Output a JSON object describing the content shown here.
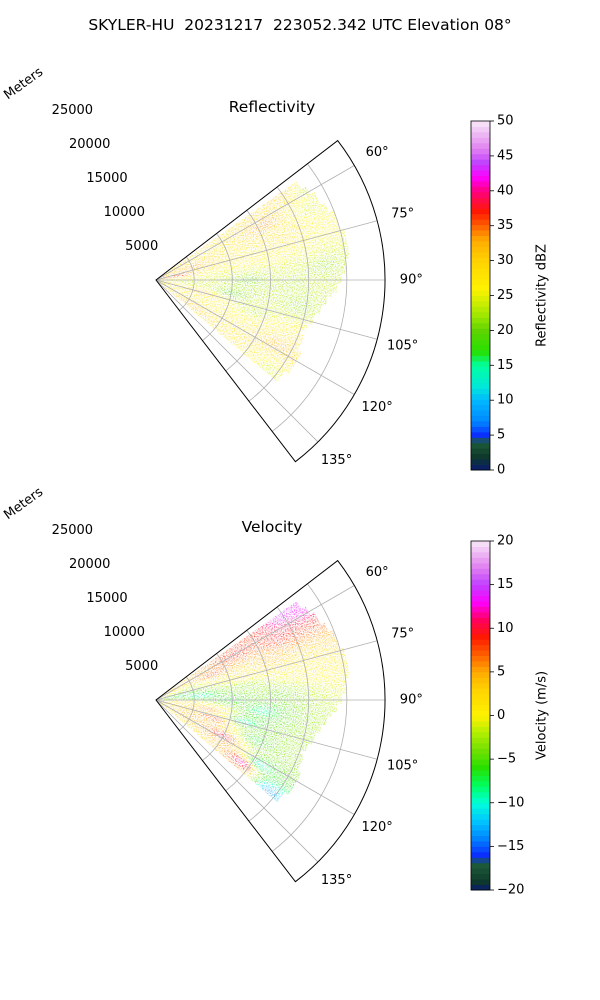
{
  "suptitle": "SKYLER-HU  20231217  223052.342 UTC Elevation 08°",
  "chart_data": [
    {
      "type": "heatmap",
      "projection": "polar sector (azimuth clockwise from north)",
      "title": "Reflectivity",
      "field": "reflectivity",
      "radial_label": "Meters",
      "range_ticks": [
        5000,
        10000,
        15000,
        20000,
        25000
      ],
      "range_tick_labels": [
        "5000",
        "10000",
        "15000",
        "20000",
        "25000"
      ],
      "range_lim": [
        0,
        30000
      ],
      "azimuth_lim_deg": [
        52.5,
        142.5
      ],
      "azimuth_ticks_deg": [
        60,
        75,
        90,
        105,
        120,
        135
      ],
      "azimuth_tick_labels": [
        "60°",
        "75°",
        "90°",
        "105°",
        "120°",
        "135°"
      ],
      "data_azimuth_range_deg": [
        55,
        130
      ],
      "data_max_range_m": [
        [
          55,
          22000
        ],
        [
          70,
          24500
        ],
        [
          80,
          25500
        ],
        [
          90,
          24000
        ],
        [
          100,
          21500
        ],
        [
          110,
          20000
        ],
        [
          120,
          21000
        ],
        [
          130,
          20500
        ]
      ],
      "cells_azimuth_range_value": [
        [
          56,
          20000,
          32
        ],
        [
          58,
          23000,
          22
        ],
        [
          63,
          16000,
          35
        ],
        [
          65,
          9000,
          28
        ],
        [
          65,
          22000,
          24
        ],
        [
          70,
          5000,
          34
        ],
        [
          72,
          17000,
          30
        ],
        [
          75,
          13000,
          27
        ],
        [
          80,
          3000,
          38
        ],
        [
          80,
          20000,
          25
        ],
        [
          85,
          8000,
          24
        ],
        [
          85,
          22000,
          21
        ],
        [
          90,
          12000,
          19
        ],
        [
          92,
          18000,
          22
        ],
        [
          95,
          5000,
          23
        ],
        [
          100,
          10000,
          18
        ],
        [
          100,
          19000,
          21
        ],
        [
          105,
          6000,
          33
        ],
        [
          108,
          14000,
          22
        ],
        [
          112,
          17000,
          28
        ],
        [
          115,
          9000,
          27
        ],
        [
          118,
          18000,
          34
        ],
        [
          122,
          15000,
          30
        ],
        [
          125,
          6000,
          32
        ],
        [
          128,
          19000,
          24
        ]
      ],
      "grid": true,
      "colorbar": {
        "label": "Reflectivity dBZ",
        "range": [
          0,
          50
        ],
        "ticks": [
          0,
          5,
          10,
          15,
          20,
          25,
          30,
          35,
          40,
          45,
          50
        ],
        "tick_labels": [
          "0",
          "5",
          "10",
          "15",
          "20",
          "25",
          "30",
          "35",
          "40",
          "45",
          "50"
        ],
        "stops": [
          [
            0,
            "#0a1a6e"
          ],
          [
            2,
            "#0e3a2a"
          ],
          [
            4,
            "#1e5c3a"
          ],
          [
            5,
            "#0a2cff"
          ],
          [
            7,
            "#0088ff"
          ],
          [
            10,
            "#00b8ff"
          ],
          [
            12,
            "#00e8d8"
          ],
          [
            15,
            "#00ffa0"
          ],
          [
            17,
            "#26e000"
          ],
          [
            20,
            "#5fd400"
          ],
          [
            22,
            "#9ae600"
          ],
          [
            24,
            "#ccee00"
          ],
          [
            26,
            "#fff200"
          ],
          [
            30,
            "#ffd200"
          ],
          [
            33,
            "#ffaa00"
          ],
          [
            35,
            "#ff6000"
          ],
          [
            37,
            "#ff1a00"
          ],
          [
            40,
            "#ff0080"
          ],
          [
            42,
            "#ff00ff"
          ],
          [
            44,
            "#c040ff"
          ],
          [
            46,
            "#e080f0"
          ],
          [
            50,
            "#f8e8f8"
          ]
        ]
      }
    },
    {
      "type": "heatmap",
      "projection": "polar sector (azimuth clockwise from north)",
      "title": "Velocity",
      "field": "radial_velocity",
      "radial_label": "Meters",
      "range_ticks": [
        5000,
        10000,
        15000,
        20000,
        25000
      ],
      "range_tick_labels": [
        "5000",
        "10000",
        "15000",
        "20000",
        "25000"
      ],
      "range_lim": [
        0,
        30000
      ],
      "azimuth_lim_deg": [
        52.5,
        142.5
      ],
      "azimuth_ticks_deg": [
        60,
        75,
        90,
        105,
        120,
        135
      ],
      "azimuth_tick_labels": [
        "60°",
        "75°",
        "90°",
        "105°",
        "120°",
        "135°"
      ],
      "data_azimuth_range_deg": [
        55,
        130
      ],
      "data_max_range_m": [
        [
          55,
          22000
        ],
        [
          70,
          24500
        ],
        [
          80,
          25500
        ],
        [
          90,
          24000
        ],
        [
          100,
          21500
        ],
        [
          110,
          20000
        ],
        [
          120,
          21000
        ],
        [
          130,
          20500
        ]
      ],
      "cells_azimuth_range_value": [
        [
          56,
          20000,
          15
        ],
        [
          58,
          23000,
          14
        ],
        [
          60,
          12000,
          10
        ],
        [
          63,
          18000,
          10
        ],
        [
          66,
          8000,
          9
        ],
        [
          70,
          5000,
          -3
        ],
        [
          70,
          16000,
          5
        ],
        [
          74,
          12000,
          2
        ],
        [
          78,
          20000,
          1
        ],
        [
          80,
          4000,
          -8
        ],
        [
          82,
          12000,
          -4
        ],
        [
          85,
          6000,
          -11
        ],
        [
          88,
          16000,
          -5
        ],
        [
          90,
          10000,
          -8
        ],
        [
          95,
          4000,
          3
        ],
        [
          96,
          14000,
          -10
        ],
        [
          100,
          7000,
          8
        ],
        [
          104,
          12000,
          -11
        ],
        [
          108,
          8000,
          10
        ],
        [
          112,
          14000,
          -8
        ],
        [
          115,
          6000,
          5
        ],
        [
          118,
          10000,
          12
        ],
        [
          122,
          16000,
          -12
        ],
        [
          126,
          14000,
          15
        ],
        [
          129,
          19000,
          -15
        ]
      ],
      "grid": true,
      "colorbar": {
        "label": "Velocity (m/s)",
        "range": [
          -20,
          20
        ],
        "ticks": [
          -20,
          -15,
          -10,
          -5,
          0,
          5,
          10,
          15,
          20
        ],
        "tick_labels": [
          "−20",
          "−15",
          "−10",
          "−5",
          "0",
          "5",
          "10",
          "15",
          "20"
        ],
        "stops": [
          [
            -20,
            "#0a1a6e"
          ],
          [
            -19,
            "#0e3a2a"
          ],
          [
            -17,
            "#1e5c3a"
          ],
          [
            -16,
            "#0a2cff"
          ],
          [
            -14,
            "#0088ff"
          ],
          [
            -12,
            "#00c8ff"
          ],
          [
            -10,
            "#00ffd8"
          ],
          [
            -8,
            "#00ff60"
          ],
          [
            -6,
            "#26e000"
          ],
          [
            -4,
            "#70e000"
          ],
          [
            -2,
            "#b0ee00"
          ],
          [
            0,
            "#fff200"
          ],
          [
            3,
            "#ffd200"
          ],
          [
            5,
            "#ffaa00"
          ],
          [
            7,
            "#ff6000"
          ],
          [
            9,
            "#ff1a00"
          ],
          [
            11,
            "#ff0060"
          ],
          [
            13,
            "#ff00ff"
          ],
          [
            15,
            "#c040ff"
          ],
          [
            17,
            "#e080f0"
          ],
          [
            20,
            "#f8e8f8"
          ]
        ]
      }
    }
  ]
}
